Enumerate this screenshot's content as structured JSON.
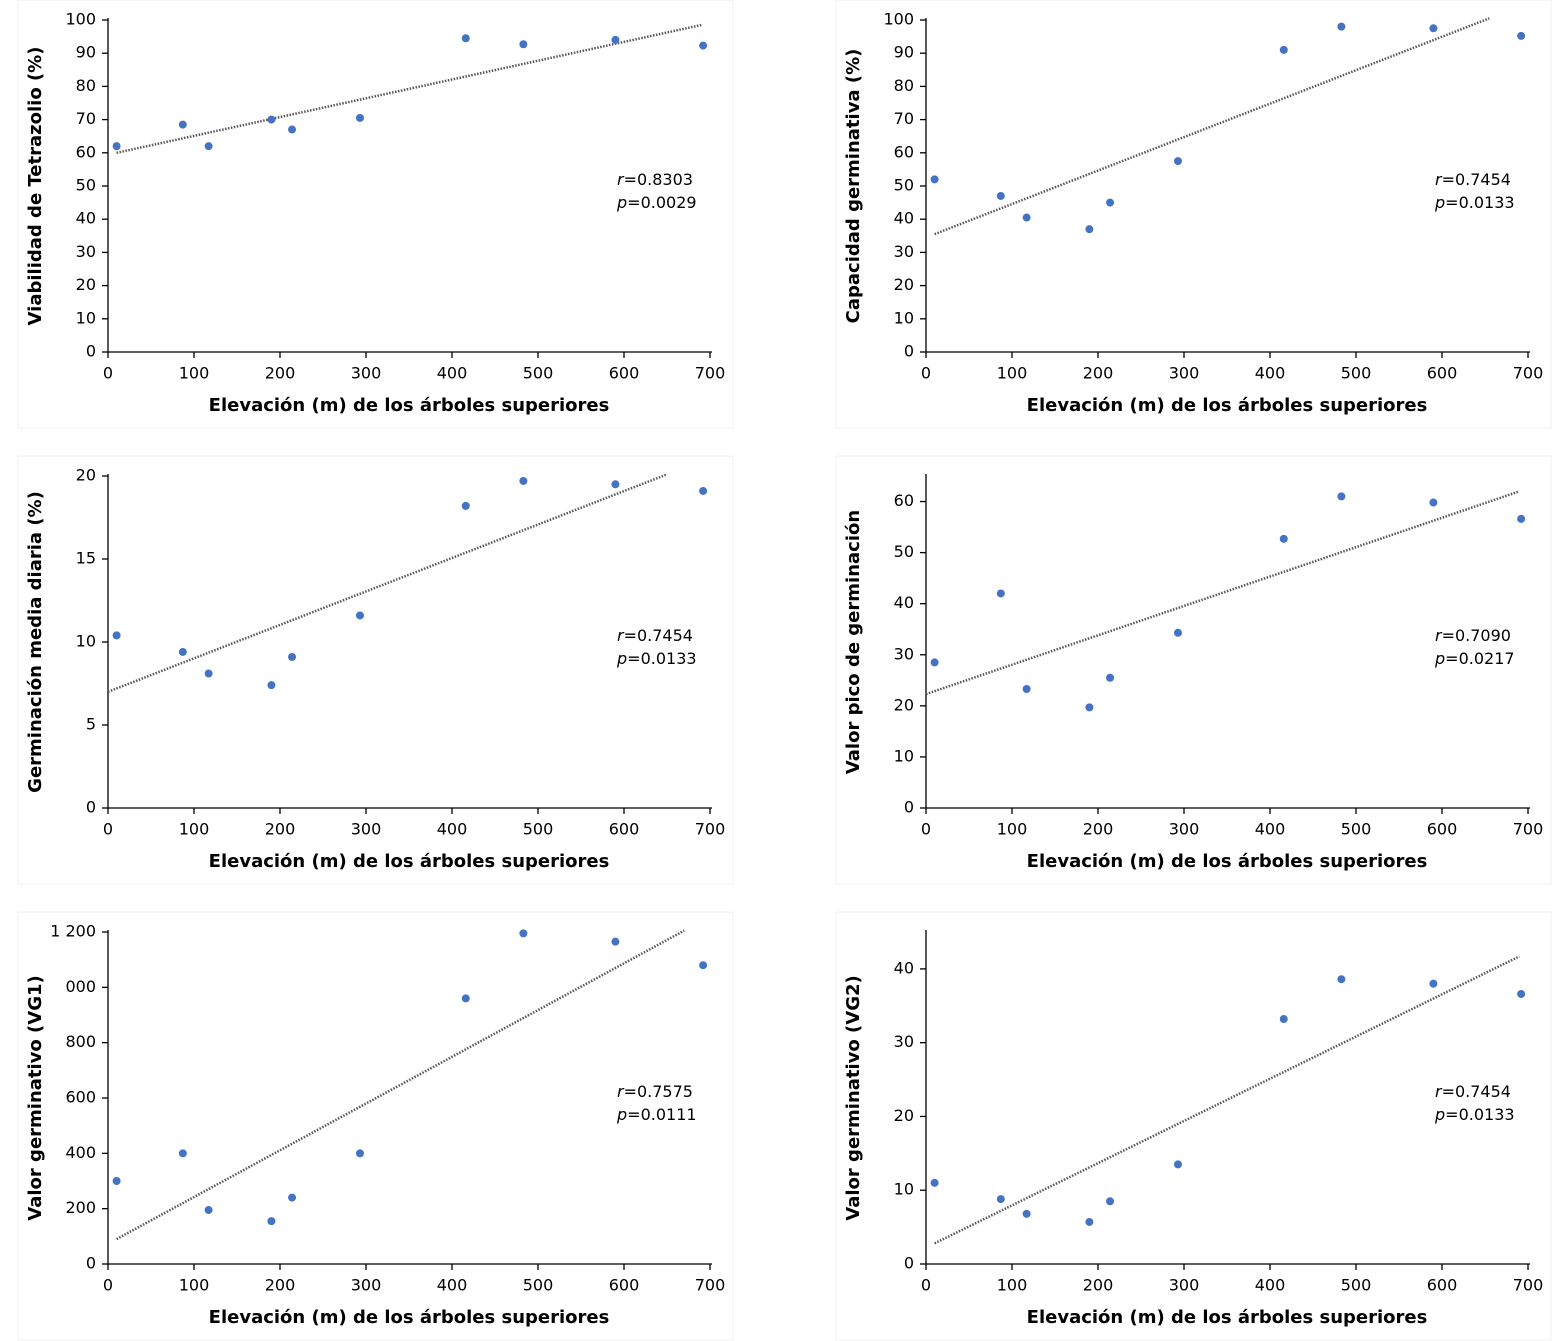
{
  "chart_data": [
    {
      "type": "scatter",
      "xlabel": "Elevación (m) de los árboles superiores",
      "ylabel": "Viabilidad de Tetrazolio (%)",
      "x": [
        10,
        87,
        117,
        190,
        214,
        293,
        416,
        483,
        590,
        692
      ],
      "values": [
        62,
        68.5,
        62,
        70,
        67,
        70.5,
        94.5,
        92.7,
        94,
        92.3
      ],
      "color": "#4472c4",
      "xlim": [
        0,
        700
      ],
      "ylim": [
        0,
        100
      ],
      "xticks": [
        0,
        100,
        200,
        300,
        400,
        500,
        600,
        700
      ],
      "yticks": [
        0,
        10,
        20,
        30,
        40,
        50,
        60,
        70,
        80,
        90,
        100
      ],
      "trendline": {
        "x": [
          10,
          690
        ],
        "y": [
          60,
          98.5
        ]
      },
      "annotation": [
        {
          "italic": "r",
          "text": "=0.8303"
        },
        {
          "italic": "p",
          "text": "=0.0029"
        }
      ]
    },
    {
      "type": "scatter",
      "xlabel": "Elevación (m) de los árboles superiores",
      "ylabel": "Capacidad germinativa (%)",
      "x": [
        10,
        87,
        117,
        190,
        214,
        293,
        416,
        483,
        590,
        692
      ],
      "values": [
        52,
        47,
        40.5,
        37,
        45,
        57.5,
        91,
        98,
        97.5,
        95.2
      ],
      "color": "#4472c4",
      "xlim": [
        0,
        700
      ],
      "ylim": [
        0,
        100
      ],
      "xticks": [
        0,
        100,
        200,
        300,
        400,
        500,
        600,
        700
      ],
      "yticks": [
        0,
        10,
        20,
        30,
        40,
        50,
        60,
        70,
        80,
        90,
        100
      ],
      "trendline": {
        "x": [
          10,
          655
        ],
        "y": [
          35.5,
          100.5
        ]
      },
      "annotation": [
        {
          "italic": "r",
          "text": "=0.7454"
        },
        {
          "italic": "p",
          "text": "=0.0133"
        }
      ]
    },
    {
      "type": "scatter",
      "xlabel": "Elevación (m) de los árboles superiores",
      "ylabel": "Germinación media diaria (%)",
      "x": [
        10,
        87,
        117,
        190,
        214,
        293,
        416,
        483,
        590,
        692
      ],
      "values": [
        10.4,
        9.4,
        8.1,
        7.4,
        9.1,
        11.6,
        18.2,
        19.7,
        19.5,
        19.1
      ],
      "color": "#4472c4",
      "xlim": [
        0,
        700
      ],
      "ylim": [
        0,
        20
      ],
      "xticks": [
        0,
        100,
        200,
        300,
        400,
        500,
        600,
        700
      ],
      "yticks": [
        0,
        5,
        10,
        15,
        20
      ],
      "trendline": {
        "x": [
          0,
          650
        ],
        "y": [
          7,
          20.1
        ]
      },
      "annotation": [
        {
          "italic": "r",
          "text": "=0.7454"
        },
        {
          "italic": "p",
          "text": "=0.0133"
        }
      ]
    },
    {
      "type": "scatter",
      "xlabel": "Elevación (m) de los árboles superiores",
      "ylabel": "Valor pico de germinación",
      "x": [
        10,
        87,
        117,
        190,
        214,
        293,
        416,
        483,
        590,
        692
      ],
      "values": [
        28.5,
        42,
        23.3,
        19.7,
        25.5,
        34.3,
        52.7,
        61,
        59.8,
        56.6
      ],
      "color": "#4472c4",
      "xlim": [
        0,
        700
      ],
      "ylim": [
        0,
        65
      ],
      "xticks": [
        0,
        100,
        200,
        300,
        400,
        500,
        600,
        700
      ],
      "yticks": [
        0,
        10,
        20,
        30,
        40,
        50,
        60
      ],
      "trendline": {
        "x": [
          0,
          690
        ],
        "y": [
          22.3,
          62
        ]
      },
      "annotation": [
        {
          "italic": "r",
          "text": "=0.7090"
        },
        {
          "italic": "p",
          "text": "=0.0217"
        }
      ]
    },
    {
      "type": "scatter",
      "xlabel": "Elevación (m) de los árboles superiores",
      "ylabel": "Valor germinativo (VG1)",
      "x": [
        10,
        87,
        117,
        190,
        214,
        293,
        416,
        483,
        590,
        692
      ],
      "values": [
        300,
        400,
        195,
        155,
        240,
        400,
        960,
        1195,
        1165,
        1080
      ],
      "color": "#4472c4",
      "xlim": [
        0,
        700
      ],
      "ylim": [
        0,
        1200
      ],
      "xticks": [
        0,
        100,
        200,
        300,
        400,
        500,
        600,
        700
      ],
      "yticks": [
        0,
        200,
        400,
        600,
        800,
        {
          "value": 1000,
          "label": "000"
        },
        {
          "value": 1200,
          "label": "1 200"
        }
      ],
      "trendline": {
        "x": [
          10,
          670
        ],
        "y": [
          90,
          1205
        ]
      },
      "annotation": [
        {
          "italic": "r",
          "text": "=0.7575"
        },
        {
          "italic": "p",
          "text": "=0.0111"
        }
      ]
    },
    {
      "type": "scatter",
      "xlabel": "Elevación (m) de los árboles superiores",
      "ylabel": "Valor germinativo (VG2)",
      "x": [
        10,
        87,
        117,
        190,
        214,
        293,
        416,
        483,
        590,
        692
      ],
      "values": [
        11,
        8.8,
        6.8,
        5.7,
        8.5,
        13.5,
        33.2,
        38.6,
        38,
        36.6
      ],
      "color": "#4472c4",
      "xlim": [
        0,
        700
      ],
      "ylim": [
        0,
        45
      ],
      "xticks": [
        0,
        100,
        200,
        300,
        400,
        500,
        600,
        700
      ],
      "yticks": [
        0,
        10,
        20,
        30,
        40
      ],
      "trendline": {
        "x": [
          10,
          690
        ],
        "y": [
          2.8,
          41.7
        ]
      },
      "annotation": [
        {
          "italic": "r",
          "text": "=0.7454"
        },
        {
          "italic": "p",
          "text": "=0.0133"
        }
      ]
    }
  ]
}
